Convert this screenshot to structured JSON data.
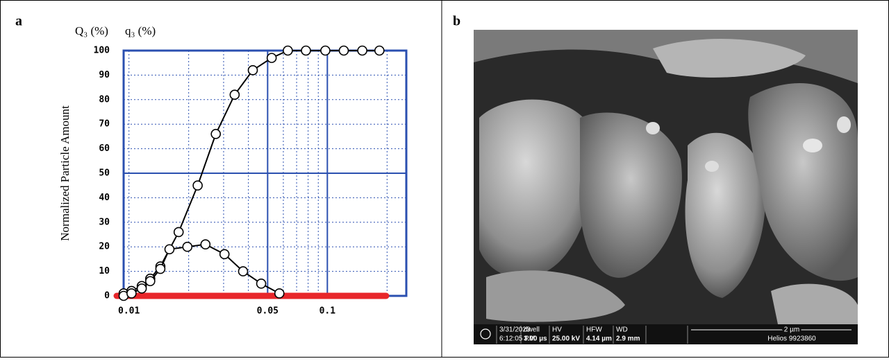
{
  "chart_data": {
    "type": "line",
    "panel": "a",
    "series_labels_note": null,
    "ylabel": "Normalized Particle Amount",
    "series": [
      {
        "name": "Q₃ (%)",
        "color": "#000000",
        "x": [
          0.0094,
          0.0103,
          0.0116,
          0.0128,
          0.0144,
          0.0178,
          0.0222,
          0.0274,
          0.0341,
          0.0421,
          0.0524,
          0.0632,
          0.078,
          0.0977,
          0.121,
          0.15,
          0.183
        ],
        "values": [
          1,
          2,
          4,
          7,
          12,
          26,
          45,
          66,
          82,
          92,
          97,
          100,
          100,
          100,
          100,
          100,
          100
        ]
      },
      {
        "name": "q₃ (%)",
        "color": "#000000",
        "x": [
          0.0094,
          0.0103,
          0.0116,
          0.0128,
          0.0144,
          0.016,
          0.0197,
          0.0243,
          0.0303,
          0.0376,
          0.0464,
          0.0573
        ],
        "values": [
          0,
          1,
          3,
          6,
          11,
          19,
          20,
          21,
          17,
          10,
          5,
          1
        ]
      }
    ],
    "xscale": "log",
    "xlim": [
      0.0094,
      0.25
    ],
    "xticks": [
      0.01,
      0.05,
      0.1
    ],
    "x_minor_grid": [
      0.02,
      0.03,
      0.04,
      0.06,
      0.07,
      0.08,
      0.09,
      0.2
    ],
    "x_ref_lines": [
      0.05,
      0.1
    ],
    "y_ref_lines": [
      50
    ],
    "ylim": [
      0,
      100
    ],
    "yticks": [
      0,
      10,
      20,
      30,
      40,
      50,
      60,
      70,
      80,
      90,
      100
    ],
    "grid": true,
    "frame_color": "#2a4fb0",
    "baseline_color": "#e8262a"
  },
  "image_panel": {
    "label": "b",
    "info_bar": {
      "date": "3/31/2023",
      "time": "6:12:05 PM",
      "dwell_label": "dwell",
      "dwell": "3.00 µs",
      "hv_label": "HV",
      "hv": "25.00 kV",
      "hfw_label": "HFW",
      "hfw": "4.14 µm",
      "wd_label": "WD",
      "wd": "2.9 mm",
      "scale": "2 µm",
      "instrument": "Helios 9923860"
    }
  }
}
